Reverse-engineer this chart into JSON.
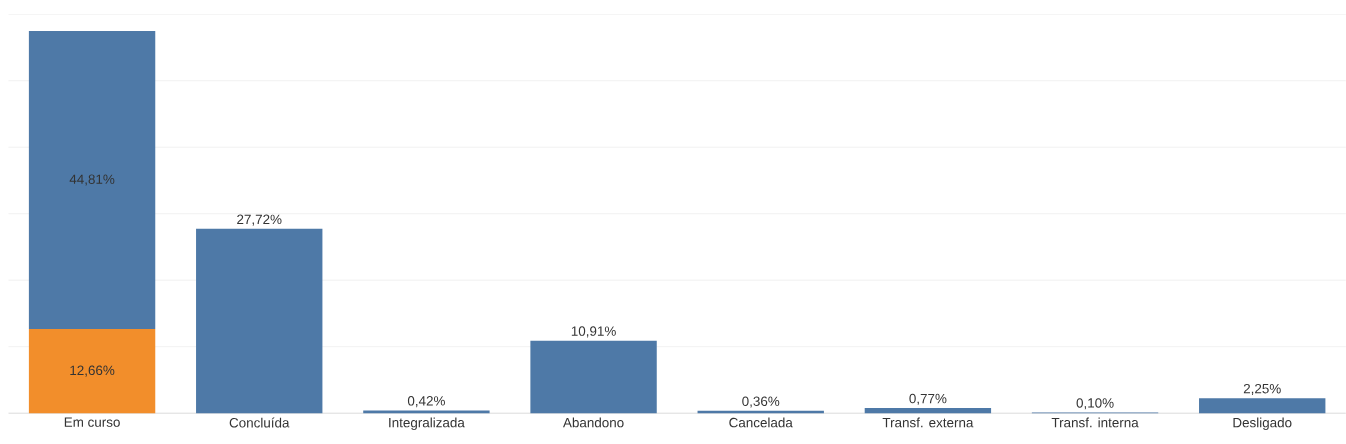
{
  "chart_data": {
    "type": "bar",
    "stacked": true,
    "categories": [
      "Em curso",
      "Concluída",
      "Integralizada",
      "Abandono",
      "Cancelada",
      "Transf. externa",
      "Transf. interna",
      "Desligado"
    ],
    "series": [
      {
        "color": "#f28e2b",
        "values": [
          12.66,
          null,
          null,
          null,
          null,
          null,
          null,
          null
        ],
        "value_labels": [
          "12,66%",
          null,
          null,
          null,
          null,
          null,
          null,
          null
        ]
      },
      {
        "color": "#4e79a7",
        "values": [
          44.81,
          27.72,
          0.42,
          10.91,
          0.36,
          0.77,
          0.1,
          2.25
        ],
        "value_labels": [
          "44,81%",
          "27,72%",
          "0,42%",
          "10,91%",
          "0,36%",
          "0,77%",
          "0,10%",
          "2,25%"
        ]
      }
    ],
    "tick_labels": "x",
    "grid": "y"
  }
}
